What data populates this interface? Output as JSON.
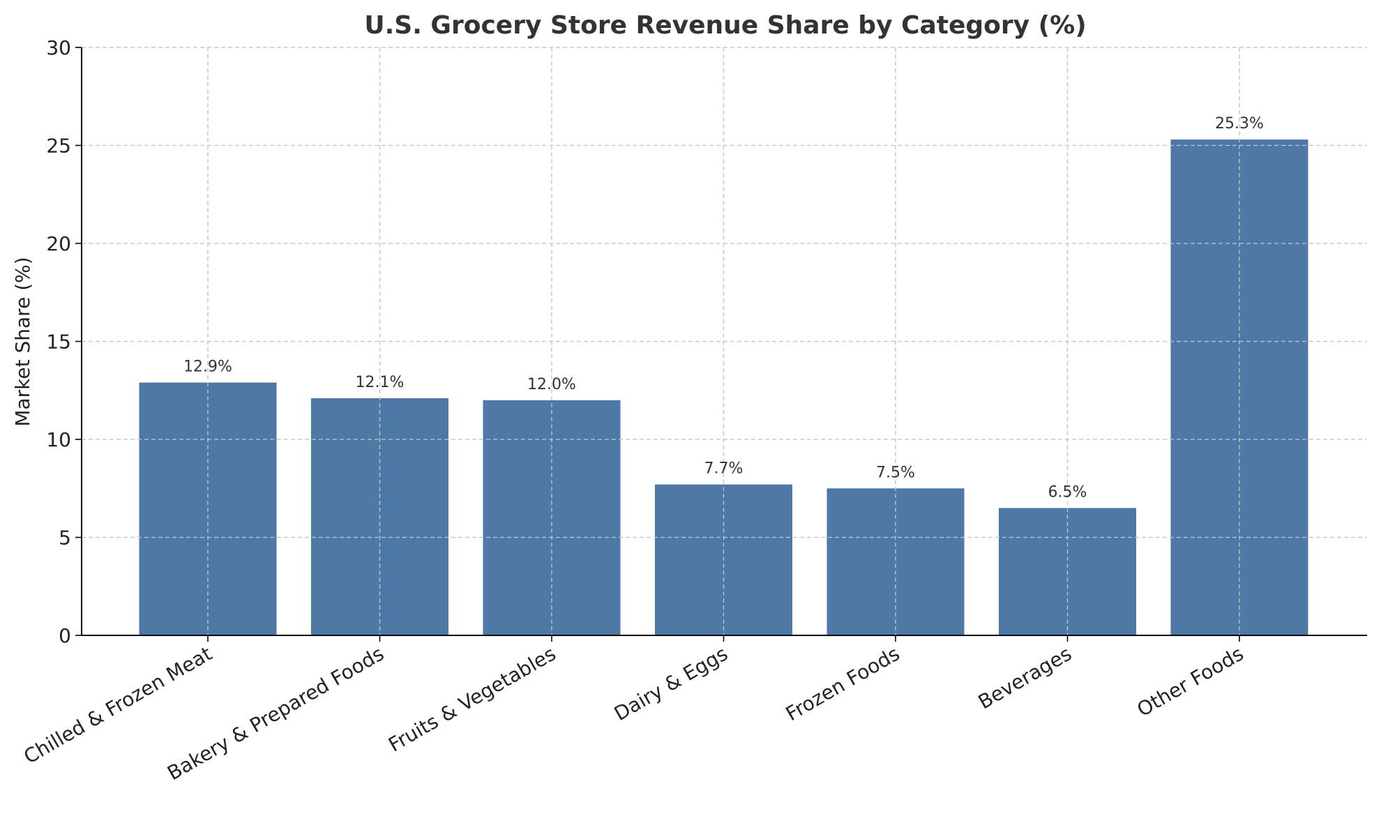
{
  "chart_data": {
    "type": "bar",
    "title": "U.S. Grocery Store Revenue Share by Category (%)",
    "xlabel": "",
    "ylabel": "Market Share (%)",
    "ylim": [
      0,
      30
    ],
    "yticks": [
      0,
      5,
      10,
      15,
      20,
      25,
      30
    ],
    "grid": true,
    "categories": [
      "Chilled & Frozen Meat",
      "Bakery & Prepared Foods",
      "Fruits & Vegetables",
      "Dairy & Eggs",
      "Frozen Foods",
      "Beverages",
      "Other Foods"
    ],
    "values": [
      12.9,
      12.1,
      12.0,
      7.7,
      7.5,
      6.5,
      25.3
    ],
    "data_labels": [
      "12.9%",
      "12.1%",
      "12.0%",
      "7.7%",
      "7.5%",
      "6.5%",
      "25.3%"
    ],
    "bar_color": "#4e78a5"
  }
}
